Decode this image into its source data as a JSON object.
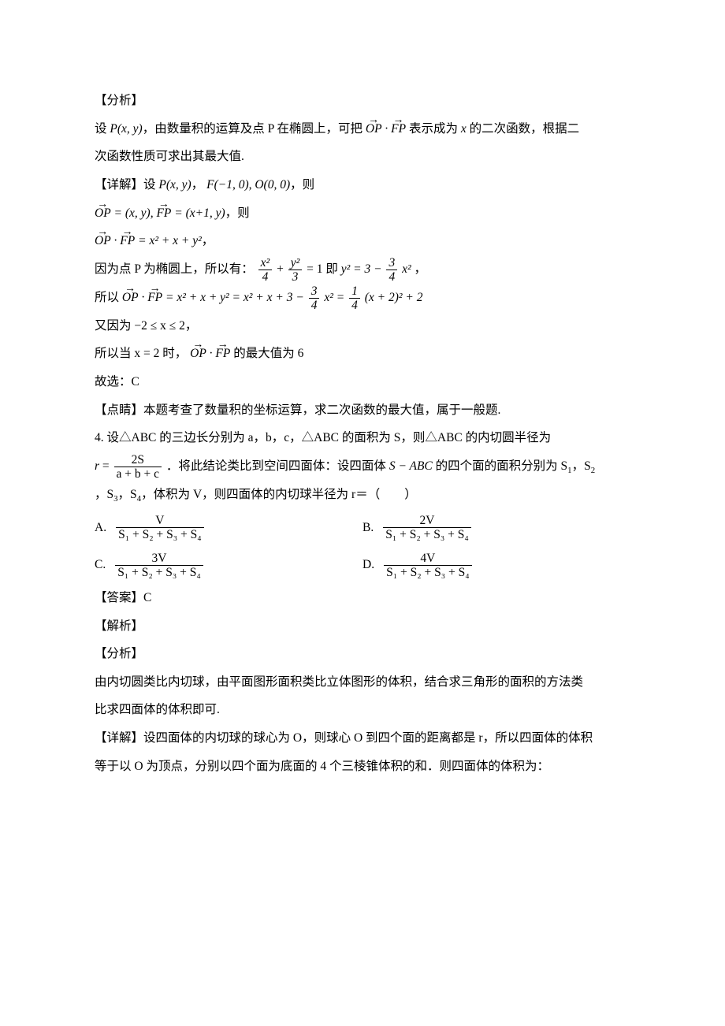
{
  "sections": {
    "analysis_label": "【分析】",
    "detail_label": "【详解】",
    "dianjing_label": "【点睛】",
    "answer_label": "【答案】",
    "jiexi_label": "【解析】"
  },
  "q3": {
    "analysis_line": "，由数量积的运算及点 P 在椭圆上，可把",
    "analysis_tail1": " 表示成为 ",
    "analysis_tail2": " 的二次函数，根据二",
    "analysis_line2": "次函数性质可求出其最大值.",
    "detail_set": "设 ",
    "P_expr": "P(x, y)",
    "F_expr": "F(−1, 0), O(0, 0)",
    "ze": "，则",
    "vec_expr1_a": "= (x, y), ",
    "vec_expr1_b": " = (x+1, y)",
    "vec_dot_eq": " = x² + x + y²",
    "comma": "，",
    "because_ellipse": "因为点 P 为椭圆上，所以有：",
    "ellipse_eq_num1": "x²",
    "ellipse_eq_den1": "4",
    "ellipse_eq_num2": "y²",
    "ellipse_eq_den2": "3",
    "eq1_rhs_text": " 即 ",
    "y2_eq_lhs": "y² = 3 − ",
    "y2_frac_num": "3",
    "y2_frac_den": "4",
    "y2_tail": "x²",
    "so": "所以 ",
    "expansion": " = x² + x + y² = x² + x + 3 − ",
    "exp_frac1_num": "3",
    "exp_frac1_den": "4",
    "exp_mid": "x² = ",
    "exp_frac2_num": "1",
    "exp_frac2_den": "4",
    "exp_tail": "(x + 2)² + 2",
    "also_because": "又因为 −2 ≤ x ≤ 2，",
    "so_when": "所以当 x = 2 时，",
    "max_text": " 的最大值为 6",
    "guxuan": "故选：C",
    "dianjing_text": "本题考查了数量积的坐标运算，求二次函数的最大值，属于一般题."
  },
  "q4": {
    "stem1": "4. 设△ABC 的三边长分别为 a，b，c，△ABC 的面积为 S，则△ABC 的内切圆半径为",
    "r_frac_num": "2S",
    "r_frac_den": "a + b + c",
    "stem2_a": "．将此结论类比到空间四面体：设四面体 ",
    "stem2_body": "S − ABC",
    "stem2_b": " 的四个面的面积分别为 S",
    "stem2_c": "，S",
    "stem3": "，S",
    "stem3b": "，S",
    "stem4": "，体积为 V，则四面体的内切球半径为 r＝（　　）",
    "choice_labels": [
      "A.",
      "B.",
      "C.",
      "D."
    ],
    "choiceA_num": "V",
    "choiceB_num": "2V",
    "choiceC_num": "3V",
    "choiceD_num": "4V",
    "choice_den": "S₁ + S₂ + S₃ + S₄",
    "answer": "C",
    "analysis_q4_l1": "由内切圆类比内切球，由平面图形面积类比立体图形的体积，结合求三角形的面积的方法类",
    "analysis_q4_l2": "比求四面体的体积即可.",
    "detail_q4_l1": "设四面体的内切球的球心为 O，则球心 O 到四个面的距离都是 r，所以四面体的体积",
    "detail_q4_l2": "等于以 O 为顶点，分别以四个面为底面的 4 个三棱锥体积的和．则四面体的体积为："
  },
  "style": {
    "text_color": "#000000",
    "background": "#ffffff"
  }
}
